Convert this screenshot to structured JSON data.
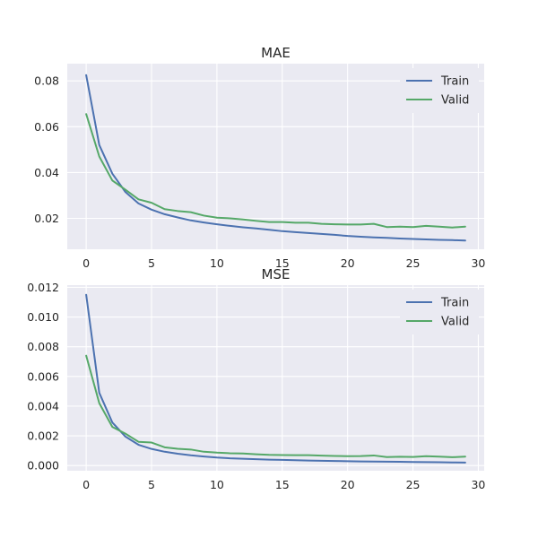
{
  "chart_data": [
    {
      "type": "line",
      "title": "MAE",
      "xlabel": "",
      "ylabel": "",
      "x": [
        0,
        1,
        2,
        3,
        4,
        5,
        6,
        7,
        8,
        9,
        10,
        11,
        12,
        13,
        14,
        15,
        16,
        17,
        18,
        19,
        20,
        21,
        22,
        23,
        24,
        25,
        26,
        27,
        28,
        29
      ],
      "xlim": [
        -1.45,
        30.45
      ],
      "ylim": [
        0.0065,
        0.0875
      ],
      "xticks": [
        0,
        5,
        10,
        15,
        20,
        25,
        30
      ],
      "yticks": [
        0.02,
        0.04,
        0.06,
        0.08
      ],
      "ytick_labels": [
        "0.02",
        "0.04",
        "0.06",
        "0.08"
      ],
      "grid": true,
      "legend_position": "top-right",
      "series": [
        {
          "name": "Train",
          "color": "#4c72b0",
          "values": [
            0.0825,
            0.052,
            0.0395,
            0.0315,
            0.0265,
            0.0238,
            0.0218,
            0.0204,
            0.0191,
            0.0182,
            0.0174,
            0.0167,
            0.0161,
            0.0156,
            0.015,
            0.0144,
            0.014,
            0.0136,
            0.0132,
            0.0128,
            0.0123,
            0.012,
            0.0117,
            0.0115,
            0.0112,
            0.011,
            0.0108,
            0.0106,
            0.0105,
            0.0103
          ]
        },
        {
          "name": "Valid",
          "color": "#55a868",
          "values": [
            0.0655,
            0.047,
            0.0365,
            0.0325,
            0.0283,
            0.0268,
            0.024,
            0.0232,
            0.0227,
            0.0212,
            0.0203,
            0.02,
            0.0195,
            0.0189,
            0.0184,
            0.0184,
            0.0181,
            0.0181,
            0.0176,
            0.0174,
            0.0173,
            0.0173,
            0.0176,
            0.0162,
            0.0164,
            0.0162,
            0.0167,
            0.0164,
            0.016,
            0.0164
          ]
        }
      ]
    },
    {
      "type": "line",
      "title": "MSE",
      "xlabel": "",
      "ylabel": "",
      "x": [
        0,
        1,
        2,
        3,
        4,
        5,
        6,
        7,
        8,
        9,
        10,
        11,
        12,
        13,
        14,
        15,
        16,
        17,
        18,
        19,
        20,
        21,
        22,
        23,
        24,
        25,
        26,
        27,
        28,
        29
      ],
      "xlim": [
        -1.45,
        30.45
      ],
      "ylim": [
        -0.00035,
        0.01215
      ],
      "xticks": [
        0,
        5,
        10,
        15,
        20,
        25,
        30
      ],
      "yticks": [
        0.0,
        0.002,
        0.004,
        0.006,
        0.008,
        0.01,
        0.012
      ],
      "ytick_labels": [
        "0.000",
        "0.002",
        "0.004",
        "0.006",
        "0.008",
        "0.010",
        "0.012"
      ],
      "grid": true,
      "legend_position": "top-right",
      "series": [
        {
          "name": "Train",
          "color": "#4c72b0",
          "values": [
            0.0115,
            0.0049,
            0.0029,
            0.00195,
            0.0014,
            0.00112,
            0.00093,
            0.0008,
            0.00069,
            0.00061,
            0.00054,
            0.00049,
            0.00046,
            0.00043,
            0.0004,
            0.00038,
            0.00036,
            0.00034,
            0.00032,
            0.00031,
            0.00029,
            0.00028,
            0.00027,
            0.00026,
            0.00025,
            0.00024,
            0.00023,
            0.00022,
            0.00021,
            0.0002
          ]
        },
        {
          "name": "Valid",
          "color": "#55a868",
          "values": [
            0.0074,
            0.0042,
            0.0026,
            0.00215,
            0.0016,
            0.00155,
            0.00123,
            0.00113,
            0.00108,
            0.00093,
            0.00087,
            0.00083,
            0.00081,
            0.00076,
            0.00072,
            0.00071,
            0.0007,
            0.0007,
            0.00067,
            0.00065,
            0.00063,
            0.00064,
            0.00068,
            0.00057,
            0.00059,
            0.00058,
            0.00063,
            0.0006,
            0.00056,
            0.0006
          ]
        }
      ]
    }
  ]
}
